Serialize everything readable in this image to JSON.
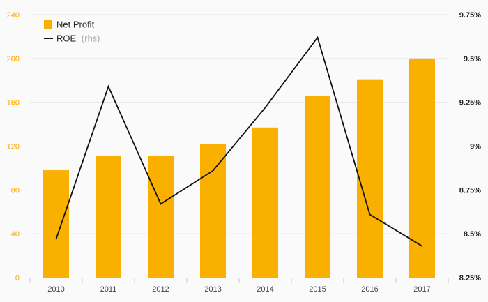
{
  "chart_data": {
    "type": "bar",
    "categories": [
      "2010",
      "2011",
      "2012",
      "2013",
      "2014",
      "2015",
      "2016",
      "2017"
    ],
    "series": [
      {
        "name": "Net Profit",
        "type": "bar",
        "axis": "left",
        "color": "#f9b000",
        "values": [
          98,
          111,
          111,
          122,
          137,
          166,
          181,
          200
        ]
      },
      {
        "name": "ROE",
        "name_suffix": "(rhs)",
        "type": "line",
        "axis": "right",
        "color": "#111111",
        "values": [
          8.47,
          9.34,
          8.67,
          8.86,
          9.22,
          9.62,
          8.61,
          8.43
        ]
      }
    ],
    "y_left": {
      "ylim": [
        0,
        240
      ],
      "ticks": [
        0,
        40,
        80,
        120,
        160,
        200,
        240
      ],
      "tick_labels": [
        "0",
        "40",
        "80",
        "120",
        "160",
        "200",
        "240"
      ],
      "color": "#f5a800"
    },
    "y_right": {
      "ylim": [
        8.25,
        9.75
      ],
      "ticks": [
        8.25,
        8.5,
        8.75,
        9.0,
        9.25,
        9.5,
        9.75
      ],
      "tick_labels": [
        "8.25%",
        "8.5%",
        "8.75%",
        "9%",
        "9.25%",
        "9.5%",
        "9.75%"
      ]
    },
    "title": "",
    "xlabel": "",
    "ylabel": "",
    "grid": true,
    "legend_position": "top-left"
  }
}
